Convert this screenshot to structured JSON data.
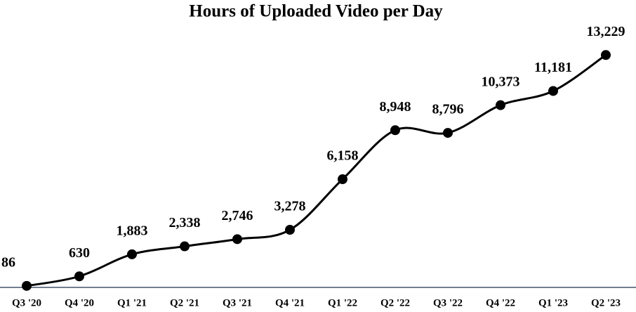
{
  "chart_data": {
    "type": "line",
    "title": "Hours of Uploaded Video per Day",
    "categories": [
      "Q3 '20",
      "Q4 '20",
      "Q1 '21",
      "Q2 '21",
      "Q3 '21",
      "Q4 '21",
      "Q1 '22",
      "Q2 '22",
      "Q3 '22",
      "Q4 '22",
      "Q1 '23",
      "Q2 '23"
    ],
    "values": [
      86,
      630,
      1883,
      2338,
      2746,
      3278,
      6158,
      8948,
      8796,
      10373,
      11181,
      13229
    ],
    "value_labels": [
      "86",
      "630",
      "1,883",
      "2,338",
      "2,746",
      "3,278",
      "6,158",
      "8,948",
      "8,796",
      "10,373",
      "11,181",
      "13,229"
    ],
    "color": "#000000",
    "ylim": [
      0,
      16000
    ],
    "smooth": true
  }
}
